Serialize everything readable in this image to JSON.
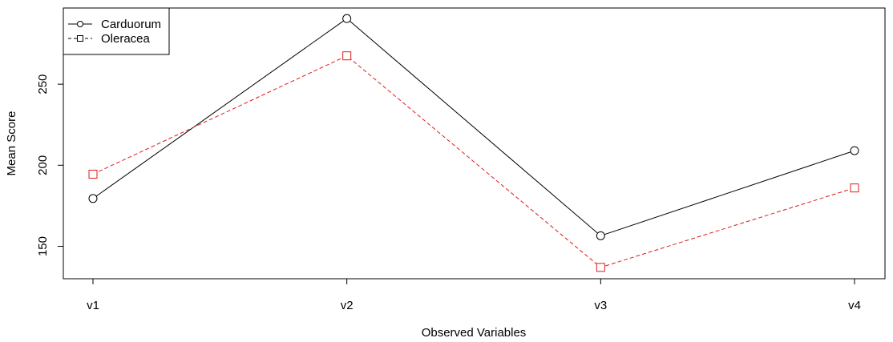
{
  "chart_data": {
    "type": "line",
    "title": "",
    "xlabel": "Observed Variables",
    "ylabel": "Mean Score",
    "categories": [
      "v1",
      "v2",
      "v3",
      "v4"
    ],
    "yticks": [
      150,
      200,
      250
    ],
    "ylim": [
      130,
      297
    ],
    "grid": false,
    "legend_position": "top-left",
    "series": [
      {
        "name": "Carduorum",
        "values": [
          179.5,
          290.5,
          156.5,
          209
        ],
        "color": "#000000",
        "line_style": "solid",
        "marker": "circle"
      },
      {
        "name": "Oleracea",
        "values": [
          194.5,
          267.5,
          137,
          186
        ],
        "color": "#df1b1b",
        "line_style": "dashed",
        "marker": "square"
      }
    ]
  }
}
